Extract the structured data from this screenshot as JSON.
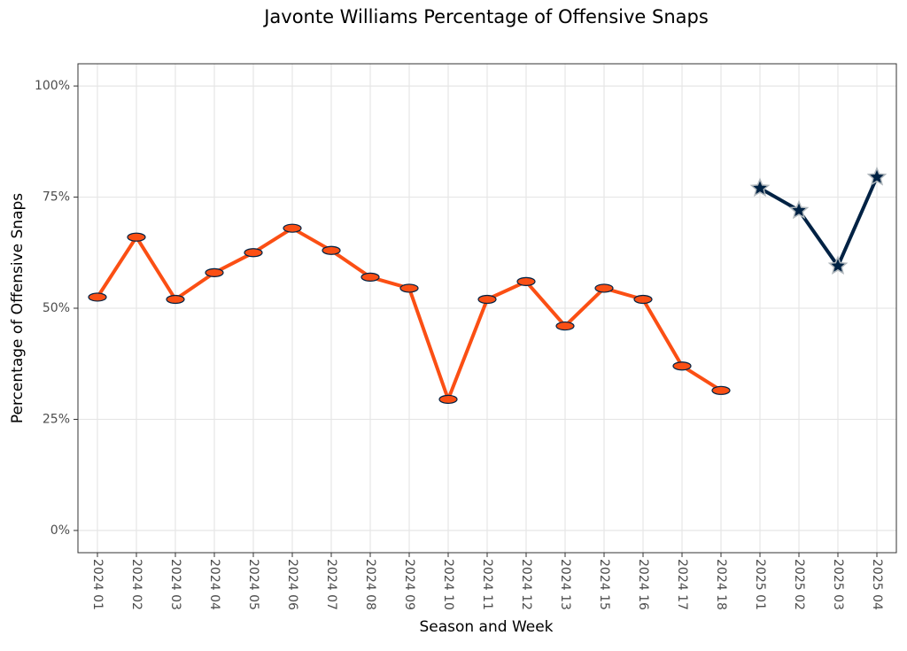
{
  "chart_data": {
    "type": "line",
    "title": "Javonte Williams Percentage of Offensive Snaps",
    "x_label": "Season and Week",
    "y_label": "Percentage of Offensive Snaps",
    "categories": [
      "2024 01",
      "2024 02",
      "2024 03",
      "2024 04",
      "2024 05",
      "2024 06",
      "2024 07",
      "2024 08",
      "2024 09",
      "2024 10",
      "2024 11",
      "2024 12",
      "2024 13",
      "2024 15",
      "2024 16",
      "2024 17",
      "2024 18",
      "2025 01",
      "2025 02",
      "2025 03",
      "2025 04"
    ],
    "series": [
      {
        "color": "#fb4f14",
        "marker": "circle",
        "values": [
          52.5,
          66,
          52,
          58,
          62.5,
          68,
          63,
          57,
          54.5,
          29.5,
          52,
          56,
          46,
          54.5,
          52,
          37,
          31.5,
          null,
          null,
          null,
          null
        ]
      },
      {
        "color": "#002244",
        "marker": "star",
        "values": [
          null,
          null,
          null,
          null,
          null,
          null,
          null,
          null,
          null,
          null,
          null,
          null,
          null,
          null,
          null,
          null,
          null,
          77,
          72,
          59.5,
          79.5
        ]
      }
    ],
    "ylim": [
      -5,
      105
    ],
    "yticks": [
      {
        "value": 0,
        "label": "0%"
      },
      {
        "value": 25,
        "label": "25%"
      },
      {
        "value": 50,
        "label": "50%"
      },
      {
        "value": 75,
        "label": "75%"
      },
      {
        "value": 100,
        "label": "100%"
      }
    ],
    "grid": true
  }
}
